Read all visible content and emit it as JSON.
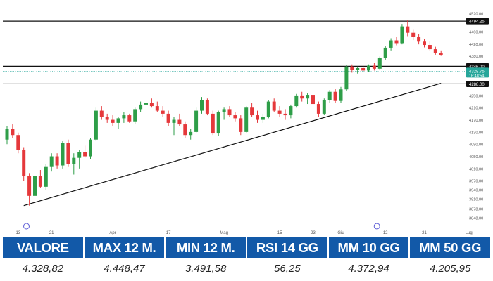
{
  "chart_data": {
    "type": "candlestick",
    "ylim": [
      3818,
      4550
    ],
    "y_ticks": [
      3848,
      3878,
      3910,
      3940,
      3970,
      4010,
      4050,
      4090,
      4130,
      4170,
      4210,
      4250,
      4288,
      4330,
      4380,
      4420,
      4460,
      4490,
      4520
    ],
    "y_tick_labels": [
      "3848.00",
      "3878.00",
      "3910.00",
      "3940.00",
      "3970.00",
      "4010.00",
      "4050.00",
      "4090.00",
      "4130.00",
      "4170.00",
      "4210.00",
      "4250.00",
      "4288.00",
      "4330.00",
      "4380.00",
      "4420.00",
      "4460.00",
      "4490.00",
      "4520.00"
    ],
    "x_labels": [
      {
        "label": "13",
        "candle": 2
      },
      {
        "label": "21",
        "candle": 8
      },
      {
        "label": "Apr",
        "candle": 19
      },
      {
        "label": "17",
        "candle": 29
      },
      {
        "label": "Mag",
        "candle": 39
      },
      {
        "label": "15",
        "candle": 49
      },
      {
        "label": "23",
        "candle": 55
      },
      {
        "label": "Giu",
        "candle": 60
      },
      {
        "label": "12",
        "candle": 68
      },
      {
        "label": "21",
        "candle": 75
      },
      {
        "label": "Lug",
        "candle": 83
      }
    ],
    "horizontal_lines": [
      {
        "value": 4494.25,
        "label": "4494.25"
      },
      {
        "value": 4346.0,
        "label": "4346.00"
      },
      {
        "value": 4288.0,
        "label": "4288.00"
      }
    ],
    "current_price": {
      "value": 4328.75,
      "label": "4328.75",
      "countdown": "16:48:54",
      "color": "#26a69a"
    },
    "trendline": {
      "from": {
        "candle": 3,
        "value": 3888
      },
      "to": {
        "candle": 78,
        "value": 4290
      }
    },
    "up_color": "#2e9e48",
    "down_color": "#e5383b",
    "candles": [
      {
        "o": 4105,
        "h": 4150,
        "l": 4090,
        "c": 4140
      },
      {
        "o": 4140,
        "h": 4155,
        "l": 4110,
        "c": 4120
      },
      {
        "o": 4120,
        "h": 4128,
        "l": 4060,
        "c": 4070
      },
      {
        "o": 4070,
        "h": 4080,
        "l": 3970,
        "c": 3985
      },
      {
        "o": 3985,
        "h": 3995,
        "l": 3888,
        "c": 3920
      },
      {
        "o": 3920,
        "h": 3995,
        "l": 3910,
        "c": 3985
      },
      {
        "o": 3985,
        "h": 4005,
        "l": 3945,
        "c": 3950
      },
      {
        "o": 3950,
        "h": 4025,
        "l": 3940,
        "c": 4015
      },
      {
        "o": 4015,
        "h": 4060,
        "l": 4000,
        "c": 4050
      },
      {
        "o": 4050,
        "h": 4060,
        "l": 4010,
        "c": 4020
      },
      {
        "o": 4020,
        "h": 4100,
        "l": 4010,
        "c": 4095
      },
      {
        "o": 4095,
        "h": 4105,
        "l": 4015,
        "c": 4025
      },
      {
        "o": 4025,
        "h": 4060,
        "l": 3990,
        "c": 4045
      },
      {
        "o": 4045,
        "h": 4070,
        "l": 4010,
        "c": 4065
      },
      {
        "o": 4065,
        "h": 4085,
        "l": 4045,
        "c": 4050
      },
      {
        "o": 4050,
        "h": 4110,
        "l": 4040,
        "c": 4105
      },
      {
        "o": 4105,
        "h": 4210,
        "l": 4100,
        "c": 4200
      },
      {
        "o": 4200,
        "h": 4215,
        "l": 4170,
        "c": 4180
      },
      {
        "o": 4180,
        "h": 4190,
        "l": 4160,
        "c": 4170
      },
      {
        "o": 4170,
        "h": 4185,
        "l": 4150,
        "c": 4160
      },
      {
        "o": 4160,
        "h": 4180,
        "l": 4140,
        "c": 4175
      },
      {
        "o": 4175,
        "h": 4195,
        "l": 4160,
        "c": 4185
      },
      {
        "o": 4185,
        "h": 4190,
        "l": 4160,
        "c": 4165
      },
      {
        "o": 4165,
        "h": 4210,
        "l": 4155,
        "c": 4205
      },
      {
        "o": 4205,
        "h": 4230,
        "l": 4195,
        "c": 4220
      },
      {
        "o": 4220,
        "h": 4235,
        "l": 4205,
        "c": 4225
      },
      {
        "o": 4225,
        "h": 4240,
        "l": 4210,
        "c": 4215
      },
      {
        "o": 4215,
        "h": 4230,
        "l": 4195,
        "c": 4200
      },
      {
        "o": 4200,
        "h": 4215,
        "l": 4180,
        "c": 4190
      },
      {
        "o": 4190,
        "h": 4200,
        "l": 4150,
        "c": 4160
      },
      {
        "o": 4160,
        "h": 4180,
        "l": 4120,
        "c": 4170
      },
      {
        "o": 4170,
        "h": 4190,
        "l": 4150,
        "c": 4155
      },
      {
        "o": 4155,
        "h": 4165,
        "l": 4110,
        "c": 4120
      },
      {
        "o": 4120,
        "h": 4140,
        "l": 4105,
        "c": 4130
      },
      {
        "o": 4130,
        "h": 4210,
        "l": 4125,
        "c": 4200
      },
      {
        "o": 4200,
        "h": 4245,
        "l": 4190,
        "c": 4235
      },
      {
        "o": 4235,
        "h": 4240,
        "l": 4185,
        "c": 4190
      },
      {
        "o": 4190,
        "h": 4200,
        "l": 4120,
        "c": 4125
      },
      {
        "o": 4125,
        "h": 4200,
        "l": 4118,
        "c": 4195
      },
      {
        "o": 4195,
        "h": 4210,
        "l": 4170,
        "c": 4205
      },
      {
        "o": 4205,
        "h": 4215,
        "l": 4180,
        "c": 4185
      },
      {
        "o": 4185,
        "h": 4195,
        "l": 4165,
        "c": 4175
      },
      {
        "o": 4175,
        "h": 4185,
        "l": 4120,
        "c": 4130
      },
      {
        "o": 4130,
        "h": 4215,
        "l": 4125,
        "c": 4210
      },
      {
        "o": 4210,
        "h": 4225,
        "l": 4180,
        "c": 4185
      },
      {
        "o": 4185,
        "h": 4200,
        "l": 4160,
        "c": 4170
      },
      {
        "o": 4170,
        "h": 4190,
        "l": 4160,
        "c": 4180
      },
      {
        "o": 4180,
        "h": 4235,
        "l": 4175,
        "c": 4230
      },
      {
        "o": 4230,
        "h": 4240,
        "l": 4195,
        "c": 4200
      },
      {
        "o": 4200,
        "h": 4215,
        "l": 4180,
        "c": 4190
      },
      {
        "o": 4190,
        "h": 4205,
        "l": 4170,
        "c": 4185
      },
      {
        "o": 4185,
        "h": 4220,
        "l": 4175,
        "c": 4215
      },
      {
        "o": 4215,
        "h": 4255,
        "l": 4210,
        "c": 4250
      },
      {
        "o": 4250,
        "h": 4262,
        "l": 4230,
        "c": 4240
      },
      {
        "o": 4240,
        "h": 4258,
        "l": 4222,
        "c": 4252
      },
      {
        "o": 4252,
        "h": 4262,
        "l": 4215,
        "c": 4222
      },
      {
        "o": 4222,
        "h": 4230,
        "l": 4180,
        "c": 4190
      },
      {
        "o": 4190,
        "h": 4240,
        "l": 4185,
        "c": 4235
      },
      {
        "o": 4235,
        "h": 4268,
        "l": 4225,
        "c": 4262
      },
      {
        "o": 4262,
        "h": 4272,
        "l": 4225,
        "c": 4232
      },
      {
        "o": 4232,
        "h": 4278,
        "l": 4225,
        "c": 4270
      },
      {
        "o": 4270,
        "h": 4350,
        "l": 4265,
        "c": 4345
      },
      {
        "o": 4345,
        "h": 4352,
        "l": 4325,
        "c": 4335
      },
      {
        "o": 4335,
        "h": 4345,
        "l": 4322,
        "c": 4340
      },
      {
        "o": 4340,
        "h": 4348,
        "l": 4326,
        "c": 4332
      },
      {
        "o": 4332,
        "h": 4352,
        "l": 4328,
        "c": 4348
      },
      {
        "o": 4348,
        "h": 4358,
        "l": 4332,
        "c": 4338
      },
      {
        "o": 4338,
        "h": 4378,
        "l": 4333,
        "c": 4373
      },
      {
        "o": 4373,
        "h": 4412,
        "l": 4366,
        "c": 4407
      },
      {
        "o": 4407,
        "h": 4438,
        "l": 4398,
        "c": 4431
      },
      {
        "o": 4431,
        "h": 4442,
        "l": 4415,
        "c": 4422
      },
      {
        "o": 4422,
        "h": 4485,
        "l": 4418,
        "c": 4477
      },
      {
        "o": 4477,
        "h": 4498,
        "l": 4445,
        "c": 4456
      },
      {
        "o": 4456,
        "h": 4468,
        "l": 4432,
        "c": 4442
      },
      {
        "o": 4442,
        "h": 4452,
        "l": 4418,
        "c": 4427
      },
      {
        "o": 4427,
        "h": 4436,
        "l": 4408,
        "c": 4416
      },
      {
        "o": 4416,
        "h": 4428,
        "l": 4396,
        "c": 4402
      },
      {
        "o": 4402,
        "h": 4410,
        "l": 4384,
        "c": 4390
      },
      {
        "o": 4390,
        "h": 4398,
        "l": 4380,
        "c": 4383
      }
    ]
  },
  "stats": [
    {
      "label": "VALORE",
      "value": "4.328,82"
    },
    {
      "label": "MAX 12 M.",
      "value": "4.448,47"
    },
    {
      "label": "MIN 12 M.",
      "value": "3.491,58"
    },
    {
      "label": "RSI 14 GG",
      "value": "56,25"
    },
    {
      "label": "MM 10 GG",
      "value": "4.372,94"
    },
    {
      "label": "MM 50 GG",
      "value": "4.205,95"
    }
  ]
}
